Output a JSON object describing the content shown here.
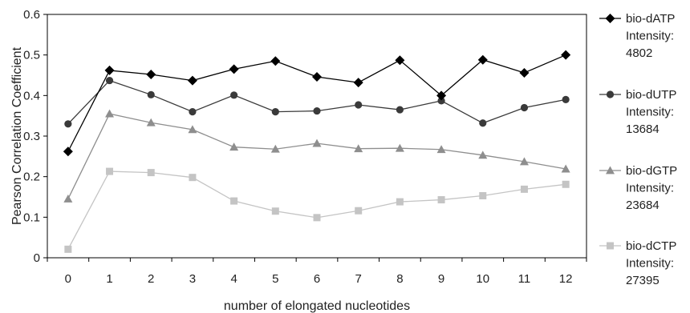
{
  "chart_data": {
    "type": "line",
    "title": "",
    "xlabel": "number of elongated nucleotides",
    "ylabel": "Pearson Correlation Coefficient",
    "x": [
      0,
      1,
      2,
      3,
      4,
      5,
      6,
      7,
      8,
      9,
      10,
      11,
      12
    ],
    "xtick_labels": [
      "0",
      "1",
      "2",
      "3",
      "4",
      "5",
      "6",
      "7",
      "8",
      "9",
      "10",
      "11",
      "12"
    ],
    "ylim": [
      0,
      0.6
    ],
    "yticks": [
      0,
      0.1,
      0.2,
      0.3,
      0.4,
      0.5,
      0.6
    ],
    "ytick_labels": [
      "0",
      "0.1",
      "0.2",
      "0.3",
      "0.4",
      "0.5",
      "0.6"
    ],
    "grid": false,
    "legend_position": "right",
    "series": [
      {
        "name": "bio-dATP",
        "legend_lines": [
          "bio-dATP",
          "Intensity:",
          "4802"
        ],
        "marker": "diamond",
        "color": "#000000",
        "values": [
          0.262,
          0.462,
          0.452,
          0.437,
          0.465,
          0.485,
          0.446,
          0.432,
          0.487,
          0.4,
          0.488,
          0.456,
          0.5
        ]
      },
      {
        "name": "bio-dUTP",
        "legend_lines": [
          "bio-dUTP",
          "Intensity:",
          "13684"
        ],
        "marker": "circle",
        "color": "#3a3a3a",
        "values": [
          0.33,
          0.437,
          0.402,
          0.36,
          0.401,
          0.36,
          0.362,
          0.377,
          0.365,
          0.387,
          0.332,
          0.37,
          0.39
        ]
      },
      {
        "name": "bio-dGTP",
        "legend_lines": [
          "bio-dGTP",
          "Intensity:",
          "23684"
        ],
        "marker": "triangle",
        "color": "#8e8e8e",
        "values": [
          0.145,
          0.355,
          0.333,
          0.316,
          0.273,
          0.268,
          0.282,
          0.269,
          0.27,
          0.267,
          0.253,
          0.237,
          0.219
        ]
      },
      {
        "name": "bio-dCTP",
        "legend_lines": [
          "bio-dCTP",
          "Intensity:",
          "27395"
        ],
        "marker": "square",
        "color": "#c4c4c4",
        "values": [
          0.021,
          0.213,
          0.21,
          0.198,
          0.14,
          0.115,
          0.099,
          0.116,
          0.138,
          0.143,
          0.153,
          0.169,
          0.181
        ]
      }
    ]
  }
}
